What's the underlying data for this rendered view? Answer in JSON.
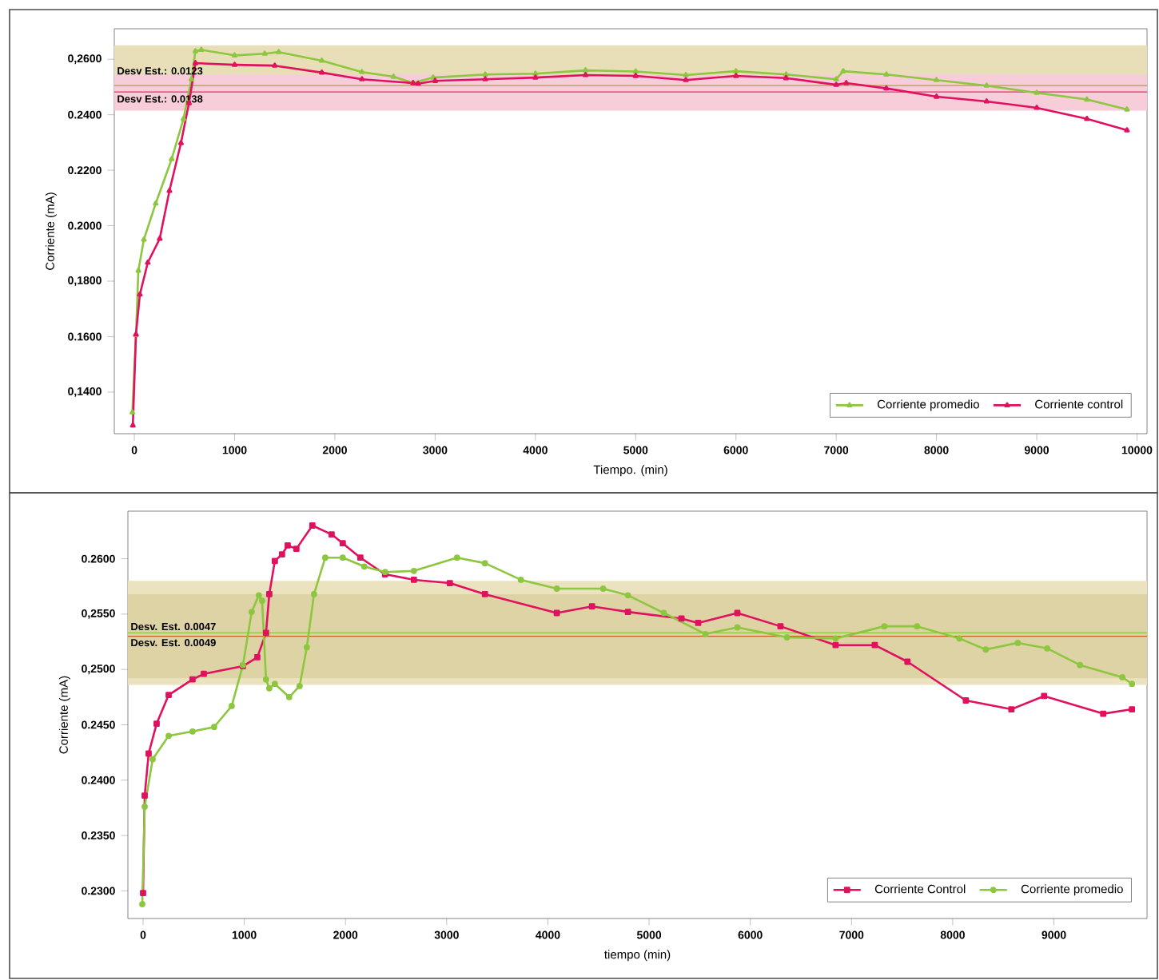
{
  "chart_data": [
    {
      "type": "line",
      "xlabel": "Tiempo. (min)",
      "ylabel": "Corriente (mA)",
      "xlim": [
        -200,
        10100
      ],
      "ylim": [
        0.125,
        0.271
      ],
      "xticks": [
        0,
        1000,
        2000,
        3000,
        4000,
        5000,
        6000,
        7000,
        8000,
        9000,
        10000
      ],
      "yticks": [
        {
          "value": 0.14,
          "label": "0,1400"
        },
        {
          "value": 0.16,
          "label": "0.1600"
        },
        {
          "value": 0.18,
          "label": "0,1800"
        },
        {
          "value": 0.2,
          "label": "0.2000"
        },
        {
          "value": 0.22,
          "label": "0.2200"
        },
        {
          "value": 0.24,
          "label": "0.2400"
        },
        {
          "value": 0.26,
          "label": "0,2600"
        }
      ],
      "legend": "bottom right",
      "bands": [
        {
          "axis": "y",
          "from": 0.242,
          "to": 0.265,
          "color": "#e8dfb8",
          "label": "Desv Est.: 0.0123"
        },
        {
          "axis": "y",
          "from": 0.2415,
          "to": 0.2545,
          "color": "#f7cdd9",
          "label": "Desv Est.: 0.0138"
        }
      ],
      "ref_lines": [
        {
          "axis": "y",
          "value": 0.2505,
          "color": "#b0a040"
        },
        {
          "axis": "y",
          "value": 0.2482,
          "color": "#e0306a"
        }
      ],
      "series": [
        {
          "name": "Corriente promedio",
          "color": "#8dc63f",
          "marker": "triangle",
          "x": [
            -20,
            16,
            40,
            95,
            213,
            372,
            490,
            569,
            609,
            668,
            1000,
            1300,
            1440,
            1870,
            2270,
            2585,
            2780,
            2980,
            3500,
            4000,
            4500,
            5000,
            5500,
            6000,
            6500,
            7000,
            7070,
            7500,
            8000,
            8500,
            9000,
            9500,
            9900
          ],
          "values": [
            0.1327,
            0.1605,
            0.1838,
            0.195,
            0.208,
            0.224,
            0.2385,
            0.2528,
            0.2629,
            0.2634,
            0.2614,
            0.262,
            0.2626,
            0.2595,
            0.2554,
            0.2537,
            0.2515,
            0.2534,
            0.2545,
            0.2548,
            0.256,
            0.2556,
            0.2543,
            0.2557,
            0.2545,
            0.2528,
            0.2557,
            0.2545,
            0.2525,
            0.2505,
            0.2479,
            0.2455,
            0.2419
          ]
        },
        {
          "name": "Corriente control",
          "color": "#e0115f",
          "marker": "triangle",
          "x": [
            -15,
            16,
            55,
            134,
            253,
            350,
            465,
            545,
            609,
            1000,
            1400,
            1870,
            2270,
            2780,
            2830,
            3000,
            3500,
            4000,
            4500,
            5000,
            5500,
            6000,
            6500,
            7000,
            7100,
            7500,
            8000,
            8500,
            9000,
            9500,
            9900
          ],
          "values": [
            0.128,
            0.1608,
            0.1752,
            0.1867,
            0.1953,
            0.2126,
            0.2298,
            0.2442,
            0.2586,
            0.258,
            0.2577,
            0.2552,
            0.2528,
            0.2514,
            0.2512,
            0.2522,
            0.2528,
            0.2534,
            0.2543,
            0.254,
            0.2525,
            0.254,
            0.2532,
            0.2508,
            0.2514,
            0.2495,
            0.2465,
            0.2448,
            0.2425,
            0.2385,
            0.2344
          ]
        }
      ]
    },
    {
      "type": "line",
      "xlabel": "tiempo (min)",
      "ylabel": "Corriente (mA)",
      "xlim": [
        -150,
        9920
      ],
      "ylim": [
        0.2275,
        0.2643
      ],
      "xticks": [
        0,
        1000,
        2000,
        3000,
        4000,
        5000,
        6000,
        7000,
        8000,
        9000
      ],
      "yticks": [
        {
          "value": 0.23,
          "label": "0.2300"
        },
        {
          "value": 0.235,
          "label": "0.2350"
        },
        {
          "value": 0.24,
          "label": "0.2400"
        },
        {
          "value": 0.245,
          "label": "0.2450"
        },
        {
          "value": 0.25,
          "label": "0,2500"
        },
        {
          "value": 0.255,
          "label": "0,2550"
        },
        {
          "value": 0.26,
          "label": "0.2600"
        }
      ],
      "legend": "bottom right",
      "bands": [
        {
          "axis": "y",
          "from": 0.2486,
          "to": 0.258,
          "color": "#ebe3c0",
          "label": "Desv. Est. 0.0047"
        },
        {
          "axis": "y",
          "from": 0.2492,
          "to": 0.2568,
          "color": "#ddd3a4",
          "label": "Desv. Est. 0.0049"
        }
      ],
      "ref_lines": [
        {
          "axis": "y",
          "value": 0.2533,
          "color": "#8dc63f"
        },
        {
          "axis": "y",
          "value": 0.253,
          "color": "#c0602a"
        }
      ],
      "series": [
        {
          "name": "Corriente Control",
          "color": "#e0115f",
          "marker": "square",
          "x": [
            0,
            16,
            55,
            134,
            253,
            489,
            600,
            987,
            1129,
            1215,
            1247,
            1302,
            1373,
            1429,
            1515,
            1673,
            1863,
            1973,
            2147,
            2391,
            2676,
            3031,
            3378,
            4088,
            4436,
            4791,
            5320,
            5485,
            5872,
            6298,
            6843,
            7230,
            7553,
            8130,
            8580,
            8903,
            9487,
            9771
          ],
          "values": [
            0.2298,
            0.2386,
            0.2424,
            0.2451,
            0.2477,
            0.2491,
            0.2496,
            0.2503,
            0.2511,
            0.2533,
            0.2568,
            0.2598,
            0.2604,
            0.2612,
            0.2609,
            0.263,
            0.2622,
            0.2614,
            0.2601,
            0.2586,
            0.2581,
            0.2578,
            0.2568,
            0.2551,
            0.2557,
            0.2552,
            0.2546,
            0.2542,
            0.2551,
            0.2539,
            0.2522,
            0.2522,
            0.2507,
            0.2472,
            0.2464,
            0.2476,
            0.246,
            0.2464
          ]
        },
        {
          "name": "Corriente promedio",
          "color": "#8dc63f",
          "marker": "circle",
          "x": [
            -8,
            16,
            95,
            253,
            489,
            702,
            876,
            987,
            1073,
            1144,
            1176,
            1215,
            1247,
            1302,
            1444,
            1547,
            1618,
            1689,
            1800,
            1973,
            2186,
            2391,
            2676,
            3102,
            3378,
            3733,
            4088,
            4546,
            4791,
            5146,
            5556,
            5872,
            6362,
            6843,
            7324,
            7648,
            8066,
            8327,
            8643,
            8934,
            9258,
            9676,
            9771
          ],
          "values": [
            0.2288,
            0.2376,
            0.2419,
            0.244,
            0.2444,
            0.2448,
            0.2467,
            0.2504,
            0.2552,
            0.2567,
            0.2562,
            0.2491,
            0.2483,
            0.2487,
            0.2475,
            0.2485,
            0.252,
            0.2568,
            0.2601,
            0.2601,
            0.2593,
            0.2588,
            0.2589,
            0.2601,
            0.2596,
            0.2581,
            0.2573,
            0.2573,
            0.2567,
            0.2551,
            0.2532,
            0.2538,
            0.2529,
            0.2528,
            0.2539,
            0.2539,
            0.2528,
            0.2518,
            0.2524,
            0.2519,
            0.2504,
            0.2493,
            0.2487
          ]
        }
      ]
    }
  ]
}
